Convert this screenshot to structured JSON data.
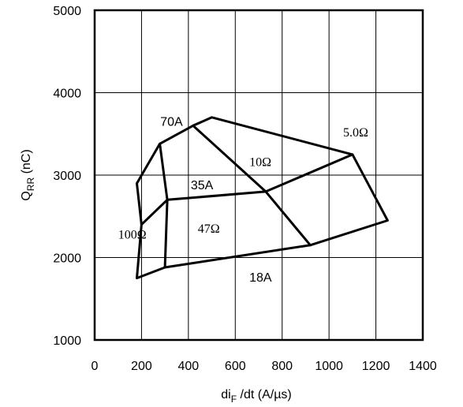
{
  "chart_data": {
    "type": "line",
    "xlabel_main": "di",
    "xlabel_sub": "F",
    "xlabel_rest": " /dt (A/µs)",
    "ylabel_main": "Q",
    "ylabel_sub": "RR",
    "ylabel_rest": " (nC)",
    "xlim": [
      0,
      1400
    ],
    "ylim": [
      1000,
      5000
    ],
    "x_ticks": [
      "0",
      "200",
      "400",
      "600",
      "800",
      "1000",
      "1200",
      "1400"
    ],
    "y_ticks": [
      "1000",
      "2000",
      "3000",
      "4000",
      "5000"
    ],
    "grid": true,
    "series": [
      {
        "name": "100Ω",
        "points": [
          [
            180,
            2900
          ],
          [
            278,
            3380
          ],
          [
            310,
            2700
          ],
          [
            300,
            1880
          ],
          [
            180,
            1750
          ],
          [
            200,
            2400
          ],
          [
            180,
            2900
          ]
        ]
      },
      {
        "name": "70A",
        "points": [
          [
            278,
            3380
          ],
          [
            420,
            3600
          ],
          [
            500,
            3700
          ],
          [
            1100,
            3250
          ],
          [
            1250,
            2450
          ],
          [
            920,
            2150
          ],
          [
            300,
            1880
          ]
        ]
      },
      {
        "name": "35A",
        "points": [
          [
            310,
            2700
          ],
          [
            730,
            2800
          ],
          [
            1100,
            3250
          ]
        ]
      },
      {
        "name": "10Ω",
        "points": [
          [
            420,
            3600
          ],
          [
            730,
            2800
          ],
          [
            920,
            2150
          ]
        ]
      },
      {
        "name": "47Ω",
        "points": [
          [
            200,
            2400
          ],
          [
            310,
            2700
          ]
        ]
      }
    ],
    "annotations": [
      {
        "text": "70A",
        "x": 280,
        "y": 3600,
        "style": "sans"
      },
      {
        "text": "5.0Ω",
        "x": 1060,
        "y": 3470,
        "style": "serif"
      },
      {
        "text": "10Ω",
        "x": 660,
        "y": 3110,
        "style": "serif"
      },
      {
        "text": "35A",
        "x": 410,
        "y": 2830,
        "style": "sans"
      },
      {
        "text": "47Ω",
        "x": 440,
        "y": 2300,
        "style": "serif"
      },
      {
        "text": "100Ω",
        "x": 100,
        "y": 2230,
        "style": "serif"
      },
      {
        "text": "18A",
        "x": 660,
        "y": 1710,
        "style": "sans"
      }
    ]
  }
}
